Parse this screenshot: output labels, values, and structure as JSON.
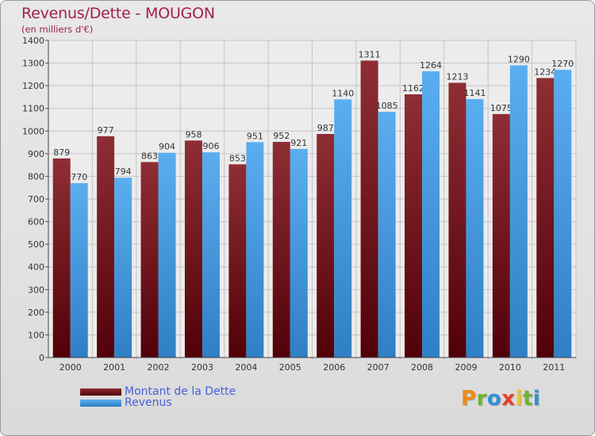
{
  "header": {
    "title": "Revenus/Dette - MOUGON",
    "subtitle": "(en milliers d'€)"
  },
  "brand": {
    "logo_letters": [
      "P",
      "r",
      "o",
      "x",
      "i",
      "t",
      "i"
    ],
    "logo_colors": [
      "#f08a1c",
      "#6cb62d",
      "#2e8fd8",
      "#e8402a",
      "#f2c21c",
      "#6cb62d",
      "#2e8fd8"
    ]
  },
  "colors": {
    "dette": "#7a1a22",
    "revenus": "#4a9fe4"
  },
  "chart_data": {
    "type": "bar",
    "categories": [
      "2000",
      "2001",
      "2002",
      "2003",
      "2004",
      "2005",
      "2006",
      "2007",
      "2008",
      "2009",
      "2010",
      "2011"
    ],
    "series": [
      {
        "name": "Montant de la Dette",
        "values": [
          879,
          977,
          863,
          958,
          853,
          952,
          987,
          1311,
          1162,
          1213,
          1075,
          1234
        ]
      },
      {
        "name": "Revenus",
        "values": [
          770,
          794,
          904,
          906,
          951,
          921,
          1140,
          1085,
          1264,
          1141,
          1290,
          1270
        ]
      }
    ],
    "ylim": [
      0,
      1400
    ],
    "yticks": [
      0,
      100,
      200,
      300,
      400,
      500,
      600,
      700,
      800,
      900,
      1000,
      1100,
      1200,
      1300,
      1400
    ],
    "grid": true,
    "legend_position": "bottom-left"
  }
}
